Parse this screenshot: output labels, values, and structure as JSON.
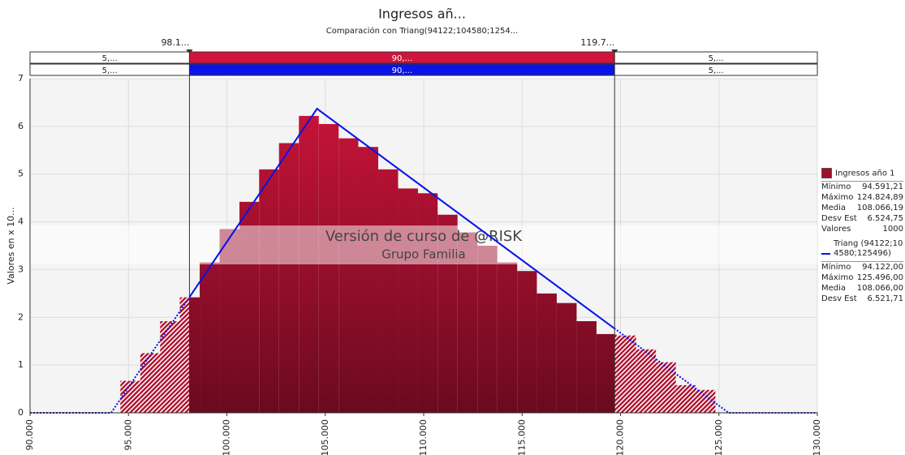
{
  "chart_data": {
    "type": "histogram",
    "title": "Ingresos añ...",
    "subtitle": "Comparación con Triang(94122;104580;1254...",
    "ylabel": "Valores en x 10...",
    "watermark": [
      "Versión de curso de @RISK",
      "Grupo Familia"
    ],
    "xlim": [
      90,
      130
    ],
    "ylim": [
      0,
      7
    ],
    "xticks": [
      {
        "value": 90,
        "label": "90.000"
      },
      {
        "value": 95,
        "label": "95.000"
      },
      {
        "value": 100,
        "label": "100.000"
      },
      {
        "value": 105,
        "label": "105.000"
      },
      {
        "value": 110,
        "label": "110.000"
      },
      {
        "value": 115,
        "label": "115.000"
      },
      {
        "value": 120,
        "label": "120.000"
      },
      {
        "value": 125,
        "label": "125.000"
      },
      {
        "value": 130,
        "label": "130.000"
      }
    ],
    "yticks": [
      0,
      1,
      2,
      3,
      4,
      5,
      6,
      7
    ],
    "grid": true,
    "bins": [
      94.59,
      95.6,
      96.61,
      97.61,
      98.62,
      99.63,
      100.64,
      101.64,
      102.65,
      103.66,
      104.67,
      105.68,
      106.68,
      107.69,
      108.7,
      109.71,
      110.71,
      111.72,
      112.73,
      113.74,
      114.75,
      115.75,
      116.76,
      117.77,
      118.78,
      119.79,
      120.79,
      121.8,
      122.81,
      123.82,
      124.82
    ],
    "values": [
      0.67,
      1.25,
      1.92,
      2.42,
      3.15,
      3.85,
      4.42,
      5.1,
      5.65,
      6.22,
      6.05,
      5.75,
      5.57,
      5.1,
      4.7,
      4.6,
      4.15,
      3.78,
      3.5,
      3.15,
      2.97,
      2.5,
      2.3,
      1.92,
      1.65,
      1.62,
      1.33,
      1.06,
      0.58,
      0.48
    ],
    "color": "#d0143c",
    "line": {
      "name": "Triang (94122;104580;125496)",
      "color": "#0a14e6",
      "x": [
        90,
        94.122,
        104.58,
        125.496,
        130
      ],
      "values": [
        0,
        0,
        6.37,
        0,
        0
      ]
    },
    "delimiters": [
      {
        "value": 98.1,
        "label": "98.1..."
      },
      {
        "value": 119.7,
        "label": "119.7..."
      }
    ],
    "regions": [
      {
        "color": "#d0143c",
        "values": [
          5,
          90,
          5
        ],
        "value_labels": [
          "5,...",
          "90,...",
          "5,..."
        ]
      },
      {
        "color": "#0a14e6",
        "values": [
          5,
          90,
          5
        ],
        "value_labels": [
          "5,...",
          "90,...",
          "5,..."
        ]
      }
    ],
    "legend": [
      {
        "name": "Ingresos año 1",
        "stats": [
          [
            "Mínimo",
            "94.591,21"
          ],
          [
            "Máximo",
            "124.824,89"
          ],
          [
            "Media",
            "108.066,19"
          ],
          [
            "Desv Est",
            "6.524,75"
          ],
          [
            "Valores",
            "1000"
          ]
        ]
      },
      {
        "name": "Triang (94122;104580;125496)",
        "stats": [
          [
            "Mínimo",
            "94.122,00"
          ],
          [
            "Máximo",
            "125.496,00"
          ],
          [
            "Media",
            "108.066,00"
          ],
          [
            "Desv Est",
            "6.521,71"
          ]
        ]
      }
    ]
  }
}
